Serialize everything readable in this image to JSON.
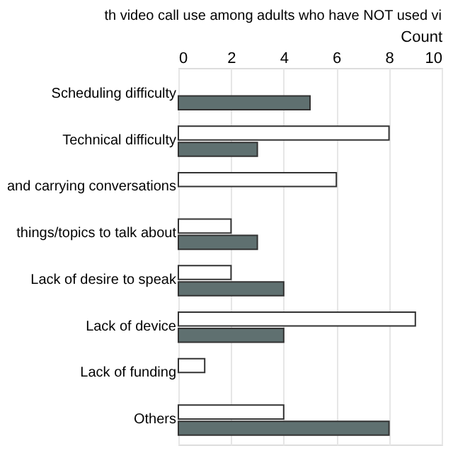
{
  "chart_data": {
    "type": "bar",
    "orientation": "horizontal",
    "title": "th video call use among adults who have NOT used vi",
    "xlabel": "Count",
    "categories": [
      "Scheduling difficulty",
      "Technical difficulty",
      "and carrying conversations",
      "things/topics to talk about",
      "Lack of desire to speak",
      "Lack of device",
      "Lack of funding",
      "Others"
    ],
    "series": [
      {
        "color": "#ffffff",
        "values": [
          null,
          8,
          6,
          2,
          2,
          9,
          1,
          4
        ]
      },
      {
        "color": "#5f7070",
        "values": [
          5,
          3,
          null,
          3,
          4,
          4,
          null,
          8
        ]
      }
    ],
    "xlim": [
      0,
      10
    ],
    "xticks": [
      0,
      2,
      4,
      6,
      8,
      10
    ],
    "grid": "x"
  }
}
